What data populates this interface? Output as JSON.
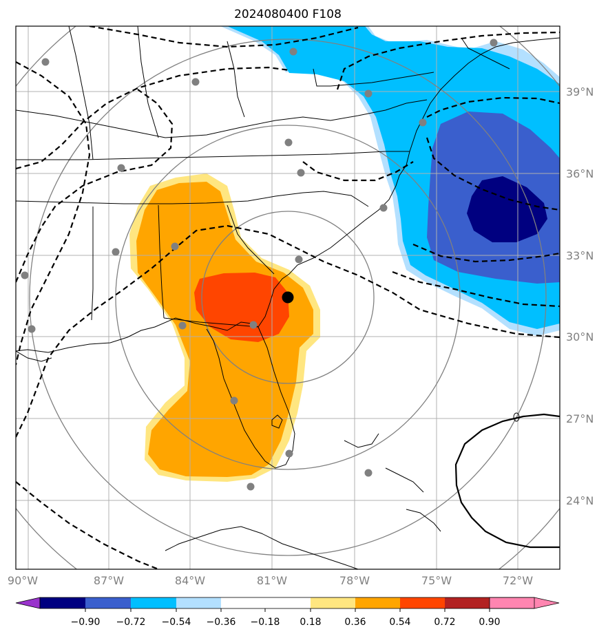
{
  "title": "2024080400 F108",
  "map": {
    "lon_ticks": [
      "90°W",
      "87°W",
      "84°W",
      "81°W",
      "78°W",
      "75°W",
      "72°W"
    ],
    "lat_ticks": [
      "39°N",
      "36°N",
      "33°N",
      "30°N",
      "27°N",
      "24°N"
    ]
  },
  "colorbar": {
    "levels": [
      "−0.90",
      "−0.72",
      "−0.54",
      "−0.36",
      "−0.18",
      "0.18",
      "0.36",
      "0.54",
      "0.72",
      "0.90"
    ],
    "colors": [
      "#9933cc",
      "#000080",
      "#3a5fcd",
      "#00bfff",
      "#b3e0ff",
      "#ffffff",
      "#ffe680",
      "#ffa500",
      "#ff4500",
      "#b22222",
      "#ff85b0"
    ]
  },
  "colors": {
    "positive_orange": "#ffa500",
    "positive_red": "#ff4500",
    "positive_yellow": "#ffe680",
    "negative_lightblue": "#b3e0ff",
    "negative_cyan": "#00bfff",
    "negative_blue": "#3a5fcd",
    "negative_navy": "#000080",
    "station_marker": "#808080",
    "center_marker": "#000000"
  }
}
